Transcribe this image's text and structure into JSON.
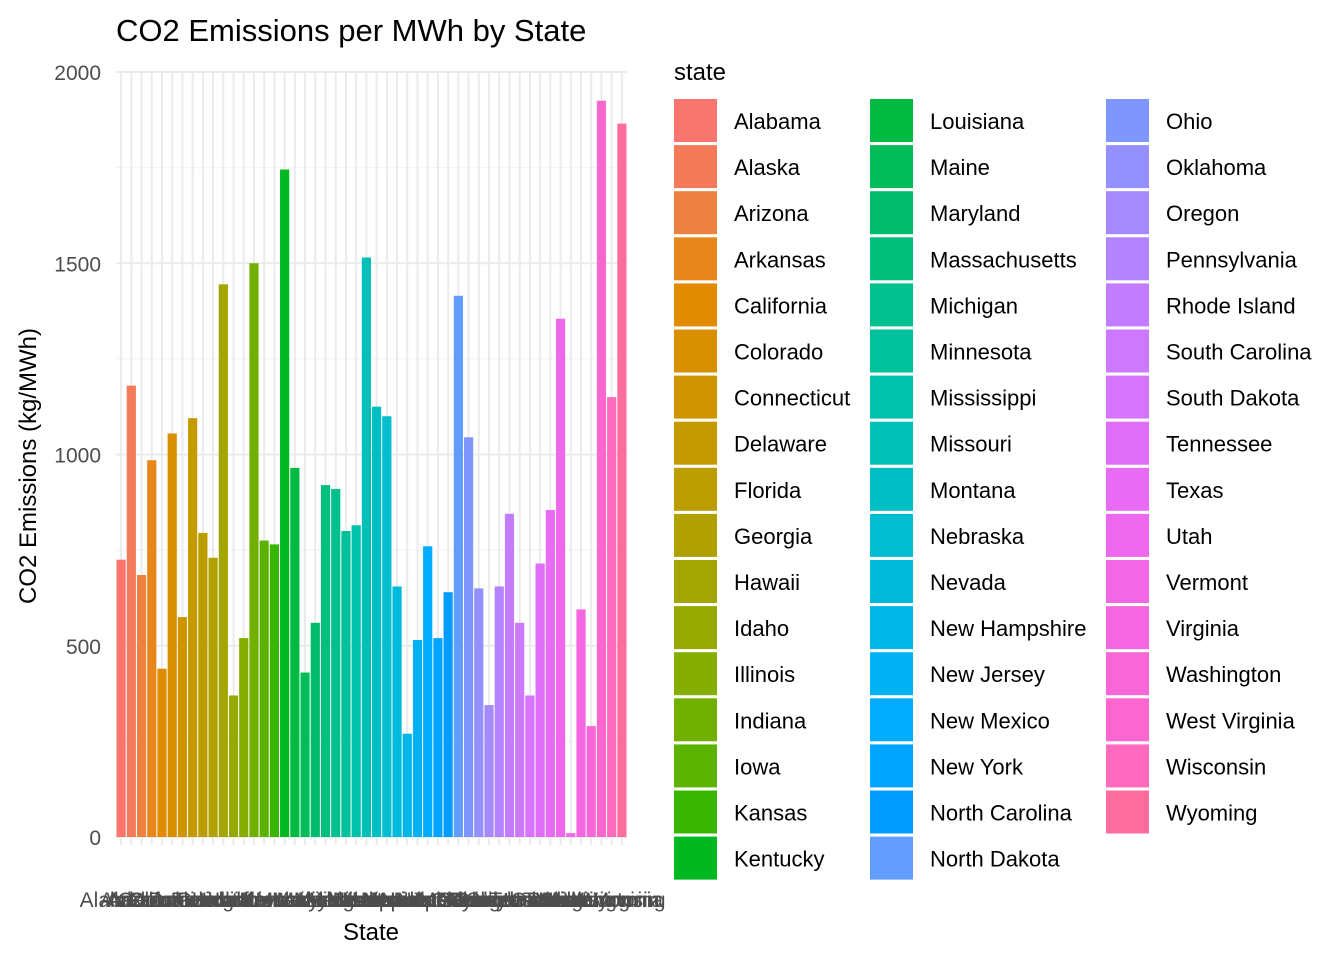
{
  "chart_data": {
    "type": "bar",
    "title": "CO2 Emissions per MWh by State",
    "xlabel": "State",
    "ylabel": "CO2 Emissions (kg/MWh)",
    "ylim": [
      0,
      2000
    ],
    "yticks": [
      0,
      500,
      1000,
      1500,
      2000
    ],
    "grid": true,
    "legend_title": "state",
    "legend_position": "right",
    "categories": [
      "Alabama",
      "Alaska",
      "Arizona",
      "Arkansas",
      "California",
      "Colorado",
      "Connecticut",
      "Delaware",
      "Florida",
      "Georgia",
      "Hawaii",
      "Idaho",
      "Illinois",
      "Indiana",
      "Iowa",
      "Kansas",
      "Kentucky",
      "Louisiana",
      "Maine",
      "Maryland",
      "Massachusetts",
      "Michigan",
      "Minnesota",
      "Mississippi",
      "Missouri",
      "Montana",
      "Nebraska",
      "Nevada",
      "New Hampshire",
      "New Jersey",
      "New Mexico",
      "New York",
      "North Carolina",
      "North Dakota",
      "Ohio",
      "Oklahoma",
      "Oregon",
      "Pennsylvania",
      "Rhode Island",
      "South Carolina",
      "South Dakota",
      "Tennessee",
      "Texas",
      "Utah",
      "Vermont",
      "Virginia",
      "Washington",
      "West Virginia",
      "Wisconsin",
      "Wyoming"
    ],
    "values": [
      725,
      1180,
      685,
      985,
      440,
      1055,
      575,
      1095,
      795,
      730,
      1445,
      370,
      520,
      1500,
      775,
      765,
      1745,
      965,
      430,
      560,
      920,
      910,
      800,
      815,
      1515,
      1125,
      1100,
      655,
      270,
      515,
      760,
      520,
      640,
      1415,
      1045,
      650,
      345,
      655,
      845,
      560,
      370,
      715,
      855,
      1355,
      10,
      595,
      290,
      1925,
      1150,
      1865
    ],
    "colors": [
      "#F8766D",
      "#F37B59",
      "#ED8141",
      "#E7861B",
      "#E08B00",
      "#D89000",
      "#CF9400",
      "#C59900",
      "#BB9D00",
      "#B0A100",
      "#A3A500",
      "#95A900",
      "#85AD00",
      "#72B000",
      "#5BB300",
      "#39B600",
      "#00B81F",
      "#00BA42",
      "#00BC59",
      "#00BD6D",
      "#00BF7D",
      "#00C08D",
      "#00C19C",
      "#00C1AA",
      "#00C0B8",
      "#00BFC4",
      "#00BDD0",
      "#00BADC",
      "#00B6E7",
      "#00B2F3",
      "#00ACFC",
      "#00A5FF",
      "#009DFF",
      "#619CFF",
      "#7F96FF",
      "#9590FF",
      "#A58AFF",
      "#B483FF",
      "#C17CFF",
      "#CD79FF",
      "#D774FD",
      "#E06DF8",
      "#E76BF3",
      "#ED68ED",
      "#F167E6",
      "#F566E1",
      "#F866D8",
      "#FC67CF",
      "#FE6ABE",
      "#FF6C9E"
    ]
  }
}
